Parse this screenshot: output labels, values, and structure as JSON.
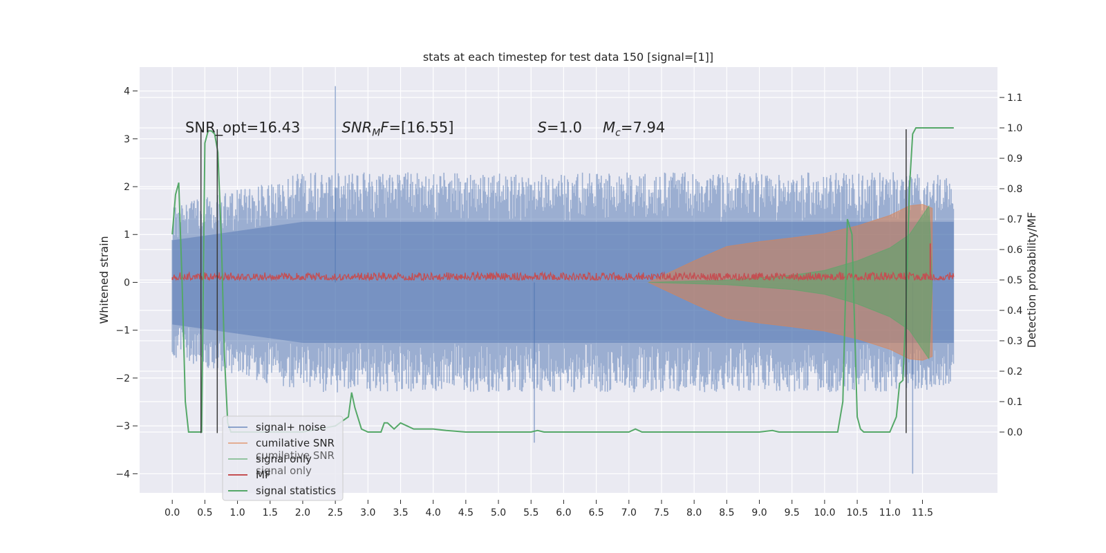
{
  "chart_data": {
    "type": "line",
    "title": "stats at each timestep for test data 150 [signal=[1]]",
    "xlabel": "",
    "ylabel": "Whitened strain",
    "ylabel_right": "Detection probability/MF",
    "xlim": [
      -0.5,
      12.65
    ],
    "ylim": [
      -4.4,
      4.5
    ],
    "ylim_right": [
      -0.2,
      1.2
    ],
    "x_ticks": [
      0.0,
      0.5,
      1.0,
      1.5,
      2.0,
      2.5,
      3.0,
      3.5,
      4.0,
      4.5,
      5.0,
      5.5,
      6.0,
      6.5,
      7.0,
      7.5,
      8.0,
      8.5,
      9.0,
      9.5,
      10.0,
      10.5,
      11.0,
      11.5
    ],
    "x_tick_labels": [
      "0.0",
      "0.5",
      "1.0",
      "1.5",
      "2.0",
      "2.5",
      "3.0",
      "3.5",
      "4.0",
      "4.5",
      "5.0",
      "5.5",
      "6.0",
      "6.5",
      "7.0",
      "7.5",
      "8.0",
      "8.5",
      "9.0",
      "9.5",
      "10.0",
      "10.5",
      "11.0",
      "11.5"
    ],
    "y_ticks": [
      -4,
      -3,
      -2,
      -1,
      0,
      1,
      2,
      3,
      4
    ],
    "y_tick_labels": [
      "−4",
      "−3",
      "−2",
      "−1",
      "0",
      "1",
      "2",
      "3",
      "4"
    ],
    "y_right_ticks": [
      0.0,
      0.1,
      0.2,
      0.3,
      0.4,
      0.5,
      0.6,
      0.7,
      0.8,
      0.9,
      1.0,
      1.1
    ],
    "y_right_tick_labels": [
      "0.0",
      "0.1",
      "0.2",
      "0.3",
      "0.4",
      "0.5",
      "0.6",
      "0.7",
      "0.8",
      "0.9",
      "1.0",
      "1.1"
    ],
    "annotations": [
      {
        "id": "snr-opt",
        "text": "SNR_opt=16.43",
        "x": 0.2,
        "y": 3.25
      },
      {
        "id": "snr-mf",
        "text": "SNR_MF=[16.55]",
        "x": 2.6,
        "y": 3.25
      },
      {
        "id": "s-value",
        "text": "S=1.0",
        "x": 5.6,
        "y": 3.25
      },
      {
        "id": "mc-value",
        "text": "Mc=7.94",
        "x": 6.6,
        "y": 3.25
      }
    ],
    "vlines": [
      {
        "x": 0.44,
        "ymin": -3.15,
        "ymax": 3.2
      },
      {
        "x": 0.69,
        "ymin": -3.15,
        "ymax": 3.2
      },
      {
        "x": 11.25,
        "ymin": -3.15,
        "ymax": 3.2
      }
    ],
    "series": [
      {
        "name": "signal+ noise",
        "color": "#4c72b0",
        "axis": "left",
        "kind": "noise-envelope",
        "x_range": [
          0.0,
          11.98
        ],
        "envelope": {
          "x": [
            0.0,
            2.0,
            4.0,
            6.0,
            8.0,
            10.0,
            11.98
          ],
          "upper": [
            1.6,
            2.3,
            2.3,
            2.3,
            2.3,
            2.3,
            2.3
          ],
          "lower": [
            -1.6,
            -2.3,
            -2.3,
            -2.3,
            -2.3,
            -2.3,
            -2.3
          ]
        },
        "peaks": [
          {
            "x": 2.5,
            "y": 4.1
          },
          {
            "x": 11.35,
            "y": -4.0
          },
          {
            "x": 5.55,
            "y": -3.35
          }
        ]
      },
      {
        "name": "cumilative SNR",
        "color": "#dd8452",
        "axis": "left",
        "kind": "chirp-envelope",
        "envelope": {
          "x": [
            7.3,
            8.0,
            8.5,
            9.0,
            9.5,
            10.0,
            10.5,
            11.0,
            11.3,
            11.5,
            11.65
          ],
          "upper": [
            0.0,
            0.45,
            0.75,
            0.85,
            0.93,
            1.02,
            1.18,
            1.4,
            1.6,
            1.63,
            1.55
          ],
          "lower": [
            0.0,
            -0.45,
            -0.75,
            -0.85,
            -0.93,
            -1.02,
            -1.18,
            -1.4,
            -1.6,
            -1.63,
            -1.55
          ]
        }
      },
      {
        "name": "signal only",
        "color": "#55a868",
        "axis": "left",
        "kind": "chirp-envelope",
        "envelope": {
          "x": [
            7.3,
            8.5,
            9.5,
            10.0,
            10.5,
            11.0,
            11.3,
            11.6,
            11.65
          ],
          "upper": [
            0.0,
            0.05,
            0.15,
            0.25,
            0.45,
            0.72,
            1.0,
            1.6,
            0.05
          ],
          "lower": [
            0.0,
            -0.05,
            -0.15,
            -0.25,
            -0.45,
            -0.72,
            -1.0,
            -1.6,
            -0.05
          ]
        }
      },
      {
        "name": "MF",
        "color": "#c44e52",
        "axis": "right",
        "kind": "mf-noise",
        "x_range": [
          0.0,
          11.98
        ],
        "base": 0.5,
        "height": 0.025,
        "spike": {
          "x": 11.62,
          "y": 0.62
        }
      },
      {
        "name": "signal statistics",
        "color": "#55a868",
        "axis": "right",
        "kind": "line",
        "x": [
          0.0,
          0.05,
          0.1,
          0.15,
          0.2,
          0.25,
          0.3,
          0.35,
          0.4,
          0.45,
          0.5,
          0.55,
          0.6,
          0.65,
          0.7,
          0.75,
          0.8,
          0.85,
          0.9,
          1.0,
          1.5,
          2.0,
          2.5,
          2.7,
          2.75,
          2.8,
          2.9,
          3.0,
          3.2,
          3.25,
          3.3,
          3.4,
          3.5,
          3.6,
          3.7,
          4.0,
          4.2,
          4.5,
          5.0,
          5.5,
          5.6,
          5.7,
          6.0,
          6.5,
          7.0,
          7.1,
          7.2,
          7.3,
          8.0,
          9.0,
          9.2,
          9.3,
          9.5,
          10.0,
          10.2,
          10.28,
          10.35,
          10.42,
          10.5,
          10.55,
          10.6,
          10.7,
          10.8,
          11.0,
          11.1,
          11.15,
          11.2,
          11.25,
          11.3,
          11.35,
          11.4,
          11.5,
          11.6,
          11.7,
          11.8,
          11.9,
          11.98
        ],
        "y": [
          0.65,
          0.78,
          0.82,
          0.5,
          0.1,
          0.0,
          0.0,
          0.0,
          0.0,
          0.0,
          0.95,
          0.99,
          0.99,
          0.98,
          0.92,
          0.65,
          0.25,
          0.03,
          0.0,
          0.0,
          0.0,
          0.0,
          0.02,
          0.05,
          0.13,
          0.08,
          0.01,
          0.0,
          0.0,
          0.03,
          0.03,
          0.01,
          0.03,
          0.02,
          0.01,
          0.01,
          0.005,
          0.0,
          0.0,
          0.0,
          0.005,
          0.0,
          0.0,
          0.0,
          0.0,
          0.01,
          0.0,
          0.0,
          0.0,
          0.0,
          0.005,
          0.0,
          0.0,
          0.0,
          0.0,
          0.1,
          0.7,
          0.65,
          0.05,
          0.01,
          0.0,
          0.0,
          0.0,
          0.0,
          0.05,
          0.16,
          0.17,
          0.42,
          0.8,
          0.98,
          1.0,
          1.0,
          1.0,
          1.0,
          1.0,
          1.0,
          1.0
        ]
      }
    ],
    "legend": {
      "position": "lower-left",
      "entries": [
        {
          "label": "signal+ noise",
          "color": "#4c72b0"
        },
        {
          "label": "cumilative SNR",
          "color": "#dd8452"
        },
        {
          "label": "signal only",
          "color": "#55a868"
        },
        {
          "label": "MF",
          "color": "#c44e52"
        },
        {
          "label": "signal statistics",
          "color": "#55a868"
        }
      ],
      "ghost_labels": [
        "cumilative SNR",
        "signal only"
      ]
    },
    "style": {
      "background": "#eaeaf2",
      "grid": "#ffffff",
      "vline": "#3a3a3a"
    }
  }
}
